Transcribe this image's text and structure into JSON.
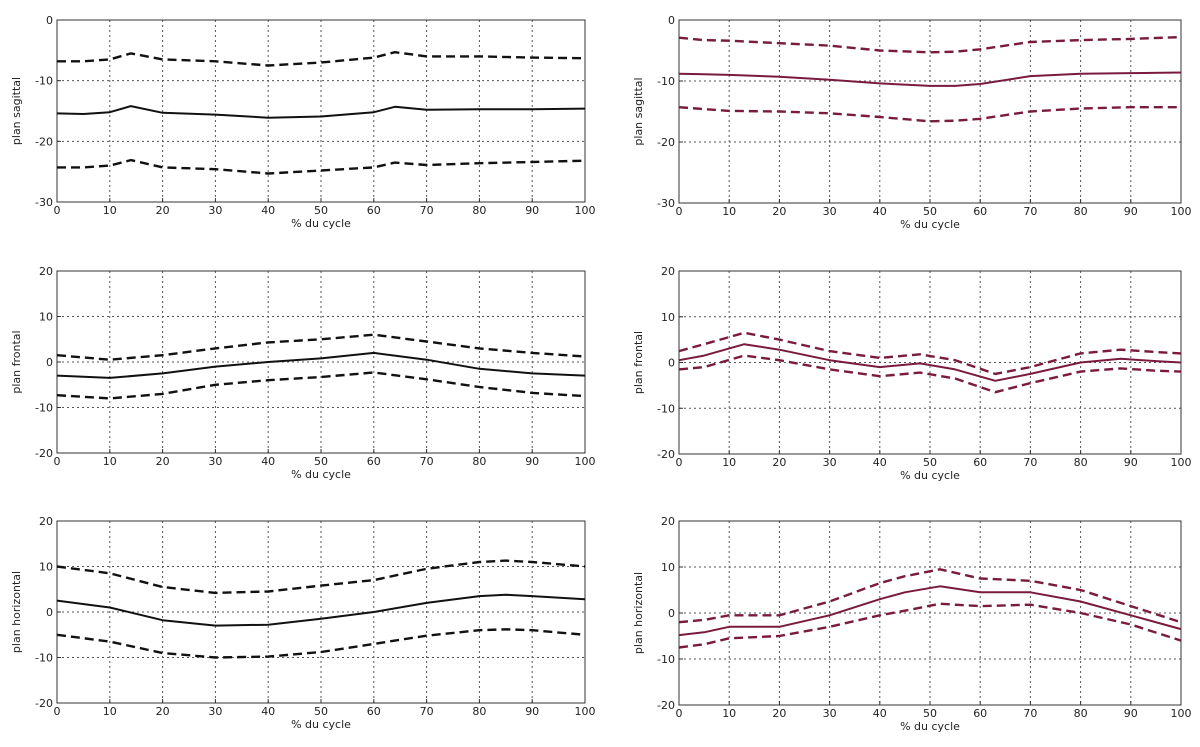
{
  "chart_data": [
    {
      "type": "line",
      "xlabel": "% du cycle",
      "ylabel": "plan sagittal",
      "ylim": [
        -30,
        0
      ],
      "yticks": [
        0,
        -10,
        -20,
        -30
      ],
      "xlim": [
        0,
        100
      ],
      "xticks": [
        0,
        10,
        20,
        30,
        40,
        50,
        60,
        70,
        80,
        90,
        100
      ],
      "grid": true,
      "color": "#111111",
      "x": [
        0,
        5,
        10,
        14,
        20,
        30,
        40,
        50,
        60,
        64,
        70,
        80,
        90,
        100
      ],
      "series": [
        {
          "style": "dashed",
          "values": [
            -6.8,
            -6.8,
            -6.5,
            -5.5,
            -6.5,
            -6.8,
            -7.5,
            -7.0,
            -6.2,
            -5.3,
            -6.0,
            -6.0,
            -6.2,
            -6.3
          ]
        },
        {
          "style": "solid",
          "values": [
            -15.4,
            -15.5,
            -15.2,
            -14.2,
            -15.3,
            -15.6,
            -16.1,
            -15.9,
            -15.2,
            -14.3,
            -14.8,
            -14.7,
            -14.7,
            -14.6
          ]
        },
        {
          "style": "dashed",
          "values": [
            -24.3,
            -24.3,
            -24.0,
            -23.1,
            -24.3,
            -24.6,
            -25.3,
            -24.8,
            -24.3,
            -23.5,
            -23.9,
            -23.6,
            -23.4,
            -23.2
          ]
        }
      ]
    },
    {
      "type": "line",
      "xlabel": "% du cycle",
      "ylabel": "plan sagittal",
      "ylim": [
        -30,
        0
      ],
      "yticks": [
        0,
        -10,
        -20,
        -30
      ],
      "xlim": [
        0,
        100
      ],
      "xticks": [
        0,
        10,
        20,
        30,
        40,
        50,
        60,
        70,
        80,
        90,
        100
      ],
      "grid": true,
      "color": "#7a1a3e",
      "x": [
        0,
        5,
        10,
        20,
        30,
        40,
        50,
        55,
        60,
        70,
        80,
        90,
        100
      ],
      "series": [
        {
          "style": "dashed",
          "values": [
            -2.9,
            -3.3,
            -3.4,
            -3.8,
            -4.2,
            -5.0,
            -5.3,
            -5.2,
            -4.8,
            -3.6,
            -3.3,
            -3.1,
            -2.8
          ]
        },
        {
          "style": "solid",
          "values": [
            -8.8,
            -8.9,
            -9.0,
            -9.3,
            -9.8,
            -10.4,
            -10.8,
            -10.8,
            -10.5,
            -9.2,
            -8.8,
            -8.7,
            -8.6
          ]
        },
        {
          "style": "dashed",
          "values": [
            -14.3,
            -14.6,
            -14.9,
            -15.0,
            -15.3,
            -15.9,
            -16.6,
            -16.5,
            -16.2,
            -15.0,
            -14.5,
            -14.3,
            -14.3
          ]
        }
      ]
    },
    {
      "type": "line",
      "xlabel": "% du cycle",
      "ylabel": "plan frontal",
      "ylim": [
        -20,
        20
      ],
      "yticks": [
        20,
        10,
        0,
        -10,
        -20
      ],
      "xlim": [
        0,
        100
      ],
      "xticks": [
        0,
        10,
        20,
        30,
        40,
        50,
        60,
        70,
        80,
        90,
        100
      ],
      "grid": true,
      "color": "#111111",
      "x": [
        0,
        10,
        20,
        30,
        40,
        50,
        60,
        70,
        80,
        90,
        100
      ],
      "series": [
        {
          "style": "dashed",
          "values": [
            1.5,
            0.5,
            1.5,
            3.0,
            4.3,
            5.0,
            6.0,
            4.5,
            3.0,
            2.0,
            1.2
          ]
        },
        {
          "style": "solid",
          "values": [
            -3.0,
            -3.5,
            -2.5,
            -1.0,
            0.0,
            0.8,
            2.0,
            0.5,
            -1.5,
            -2.5,
            -3.0
          ]
        },
        {
          "style": "dashed",
          "values": [
            -7.3,
            -8.0,
            -7.0,
            -5.0,
            -4.0,
            -3.3,
            -2.3,
            -3.8,
            -5.5,
            -6.8,
            -7.5
          ]
        }
      ]
    },
    {
      "type": "line",
      "xlabel": "% du cycle",
      "ylabel": "plan frontal",
      "ylim": [
        -20,
        20
      ],
      "yticks": [
        20,
        10,
        0,
        -10,
        -20
      ],
      "xlim": [
        0,
        100
      ],
      "xticks": [
        0,
        10,
        20,
        30,
        40,
        50,
        60,
        70,
        80,
        90,
        100
      ],
      "grid": true,
      "color": "#7a1a3e",
      "x": [
        0,
        5,
        13,
        20,
        30,
        40,
        48,
        55,
        63,
        70,
        80,
        88,
        95,
        100
      ],
      "series": [
        {
          "style": "dashed",
          "values": [
            2.5,
            4.0,
            6.5,
            5.0,
            2.5,
            1.0,
            1.8,
            0.5,
            -2.5,
            -1.0,
            2.0,
            2.8,
            2.3,
            2.0
          ]
        },
        {
          "style": "solid",
          "values": [
            0.5,
            1.5,
            4.0,
            2.8,
            0.5,
            -1.0,
            -0.2,
            -1.5,
            -4.0,
            -2.5,
            0.0,
            0.8,
            0.3,
            0.0
          ]
        },
        {
          "style": "dashed",
          "values": [
            -1.5,
            -1.0,
            1.5,
            0.5,
            -1.5,
            -3.0,
            -2.2,
            -3.5,
            -6.5,
            -4.5,
            -2.0,
            -1.3,
            -1.8,
            -2.0
          ]
        }
      ]
    },
    {
      "type": "line",
      "xlabel": "% du cycle",
      "ylabel": "plan horizontal",
      "ylim": [
        -20,
        20
      ],
      "yticks": [
        20,
        10,
        0,
        -10,
        -20
      ],
      "xlim": [
        0,
        100
      ],
      "xticks": [
        0,
        10,
        20,
        30,
        40,
        50,
        60,
        70,
        80,
        90,
        100
      ],
      "grid": true,
      "color": "#111111",
      "x": [
        0,
        10,
        20,
        30,
        40,
        50,
        60,
        70,
        80,
        85,
        90,
        100
      ],
      "series": [
        {
          "style": "dashed",
          "values": [
            10.0,
            8.5,
            5.5,
            4.2,
            4.5,
            5.8,
            7.0,
            9.5,
            11.0,
            11.3,
            11.0,
            10.0
          ]
        },
        {
          "style": "solid",
          "values": [
            2.5,
            1.0,
            -1.8,
            -3.0,
            -2.8,
            -1.5,
            0.0,
            2.0,
            3.5,
            3.8,
            3.5,
            2.8
          ]
        },
        {
          "style": "dashed",
          "values": [
            -5.0,
            -6.5,
            -9.0,
            -10.0,
            -9.8,
            -8.8,
            -7.0,
            -5.2,
            -4.0,
            -3.8,
            -4.0,
            -5.0
          ]
        }
      ]
    },
    {
      "type": "line",
      "xlabel": "% du cycle",
      "ylabel": "plan horizontal",
      "ylim": [
        -20,
        20
      ],
      "yticks": [
        20,
        10,
        0,
        -10,
        -20
      ],
      "xlim": [
        0,
        100
      ],
      "xticks": [
        0,
        10,
        20,
        30,
        40,
        50,
        60,
        70,
        80,
        90,
        100
      ],
      "grid": true,
      "color": "#7a1a3e",
      "x": [
        0,
        5,
        10,
        20,
        30,
        40,
        45,
        52,
        60,
        70,
        80,
        90,
        100
      ],
      "series": [
        {
          "style": "dashed",
          "values": [
            -2.0,
            -1.5,
            -0.5,
            -0.5,
            2.5,
            6.5,
            8.0,
            9.5,
            7.5,
            7.0,
            5.0,
            1.5,
            -2.0
          ]
        },
        {
          "style": "solid",
          "values": [
            -4.8,
            -4.2,
            -3.0,
            -3.0,
            -0.5,
            3.0,
            4.5,
            5.8,
            4.5,
            4.5,
            2.5,
            -0.5,
            -3.5
          ]
        },
        {
          "style": "dashed",
          "values": [
            -7.5,
            -6.8,
            -5.5,
            -5.0,
            -3.0,
            -0.5,
            0.5,
            2.0,
            1.5,
            1.8,
            0.0,
            -2.5,
            -6.0
          ]
        }
      ]
    }
  ]
}
